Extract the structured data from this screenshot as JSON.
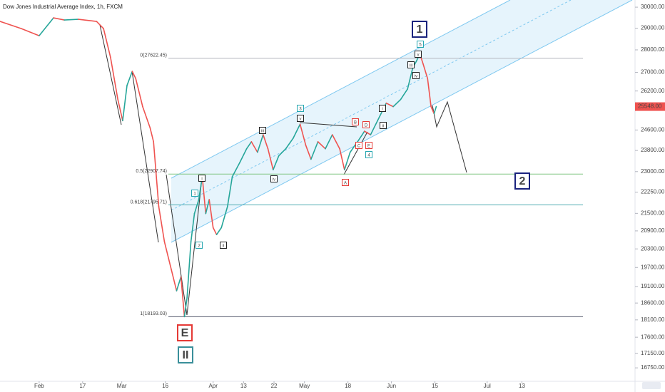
{
  "chart_data": {
    "type": "line",
    "title": "Dow Jones Industrial Average Index, 1h, FXCM",
    "log_scale": true,
    "grid": false,
    "colors": {
      "up": "#26a69a",
      "down": "#ef5350"
    },
    "x": [
      -9.0,
      -4.1,
      0,
      3.3,
      5.8,
      9.0,
      13.2,
      14.8,
      16.4,
      18.1,
      19.2,
      20.2,
      21.4,
      22.2,
      23.8,
      25.5,
      26.3,
      27.5,
      28.8,
      30.4,
      31.6,
      32.6,
      33.4,
      34.0,
      34.9,
      35.7,
      36.7,
      37.5,
      38.3,
      39.1,
      40.0,
      40.8,
      41.9,
      43.3,
      44.4,
      46.1,
      47.7,
      48.8,
      50.2,
      51.5,
      52.6,
      53.8,
      55.1,
      56.7,
      58.4,
      60.0,
      61.3,
      62.5,
      64.1,
      65.8,
      67.4,
      69.1,
      70.2,
      71.5,
      73.2,
      74.8,
      76.2,
      77.8,
      79.8,
      81.4,
      83.1,
      84.7,
      85.9,
      86.8,
      87.5,
      88.3,
      89.3,
      90.1,
      90.8,
      91.3
    ],
    "values": [
      29317,
      28981,
      28649,
      29486,
      29384,
      29418,
      29317,
      28981,
      27674,
      25839,
      24972,
      26434,
      27044,
      26737,
      25546,
      24690,
      24137,
      21736,
      20540,
      19626,
      18971,
      19405,
      18193,
      18758,
      20540,
      21491,
      21984,
      22809,
      21491,
      21984,
      21010,
      20774,
      21010,
      21736,
      22809,
      23331,
      23865,
      24137,
      23731,
      24412,
      23865,
      23068,
      23597,
      23865,
      24274,
      24831,
      24001,
      23463,
      24137,
      23865,
      24412,
      23865,
      23068,
      23731,
      24137,
      24551,
      24412,
      24972,
      25692,
      25546,
      25839,
      26284,
      27200,
      27515,
      27834,
      27357,
      26737,
      25546,
      25257,
      25548
    ],
    "xlim": [
      -9,
      137
    ],
    "xticks": [
      {
        "value": 0,
        "label": "Feb"
      },
      {
        "value": 10,
        "label": "17"
      },
      {
        "value": 19,
        "label": "Mar"
      },
      {
        "value": 29,
        "label": "16"
      },
      {
        "value": 40,
        "label": "Apr"
      },
      {
        "value": 47,
        "label": "13"
      },
      {
        "value": 54,
        "label": "22"
      },
      {
        "value": 61,
        "label": "May"
      },
      {
        "value": 71,
        "label": "18"
      },
      {
        "value": 81,
        "label": "Jun"
      },
      {
        "value": 91,
        "label": "15"
      },
      {
        "value": 103,
        "label": "Jul"
      },
      {
        "value": 111,
        "label": "13"
      }
    ],
    "ylim": [
      16390,
      30350
    ],
    "yticks": [
      {
        "value": 30000,
        "label": "30000.00"
      },
      {
        "value": 29000,
        "label": "29000.00"
      },
      {
        "value": 28000,
        "label": "28000.00"
      },
      {
        "value": 27000,
        "label": "27000.00"
      },
      {
        "value": 26200,
        "label": "26200.00"
      },
      {
        "value": 24600,
        "label": "24600.00"
      },
      {
        "value": 23800,
        "label": "23800.00"
      },
      {
        "value": 23000,
        "label": "23000.00"
      },
      {
        "value": 22250,
        "label": "22250.00"
      },
      {
        "value": 21500,
        "label": "21500.00"
      },
      {
        "value": 20900,
        "label": "20900.00"
      },
      {
        "value": 20300,
        "label": "20300.00"
      },
      {
        "value": 19700,
        "label": "19700.00"
      },
      {
        "value": 19100,
        "label": "19100.00"
      },
      {
        "value": 18600,
        "label": "18600.00"
      },
      {
        "value": 18100,
        "label": "18100.00"
      },
      {
        "value": 17600,
        "label": "17600.00"
      },
      {
        "value": 17150,
        "label": "17150.00"
      },
      {
        "value": 16750,
        "label": "16750.00"
      }
    ],
    "last_price": {
      "value": 25548,
      "label": "25548.00",
      "color": "#ef5350"
    },
    "fib_levels": [
      {
        "value": 27622.45,
        "label": "0(27622.45)",
        "color": "#b2b5be"
      },
      {
        "value": 22907.74,
        "label": "0.5(22907.74)",
        "color": "#81c784"
      },
      {
        "value": 21795.71,
        "label": "0.618(21795.71)",
        "color": "#4dabb0"
      },
      {
        "value": 18193.03,
        "label": "1(18193.03)",
        "color": "#555b6e"
      }
    ],
    "annotations": [
      {
        "text": "1",
        "color": "#1a237e"
      },
      {
        "text": "2",
        "color": "#1a237e"
      },
      {
        "text": "E",
        "color": "#e53935"
      },
      {
        "text": "II",
        "color": "#3a8f9a"
      },
      {
        "text": "5",
        "color": "#26a6b0"
      },
      {
        "text": "v",
        "color": "#222222"
      },
      {
        "text": "iii",
        "color": "#222222"
      },
      {
        "text": "iv",
        "color": "#222222"
      },
      {
        "text": "3",
        "color": "#26a6b0"
      },
      {
        "text": "v",
        "color": "#222222"
      },
      {
        "text": "iii",
        "color": "#222222"
      },
      {
        "text": "iv",
        "color": "#222222"
      },
      {
        "text": "B",
        "color": "#e53935"
      },
      {
        "text": "D",
        "color": "#e53935"
      },
      {
        "text": "C",
        "color": "#e53935"
      },
      {
        "text": "E",
        "color": "#e53935"
      },
      {
        "text": "4",
        "color": "#26a6b0"
      },
      {
        "text": "A",
        "color": "#e53935"
      },
      {
        "text": "ii",
        "color": "#222222"
      },
      {
        "text": "i",
        "color": "#222222"
      },
      {
        "text": "i",
        "color": "#222222"
      },
      {
        "text": "1",
        "color": "#26a6b0"
      },
      {
        "text": "2",
        "color": "#26a6b0"
      },
      {
        "text": "ii",
        "color": "#222222"
      }
    ]
  }
}
